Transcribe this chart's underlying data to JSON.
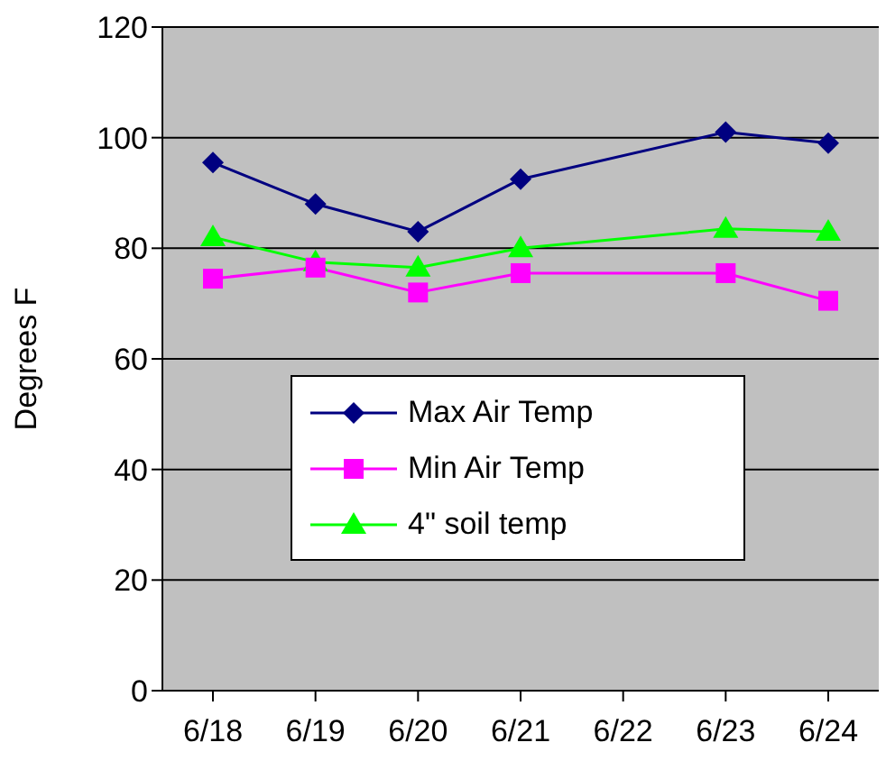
{
  "chart_data": {
    "type": "line",
    "ylabel": "Degrees F",
    "categories": [
      "6/18",
      "6/19",
      "6/20",
      "6/21",
      "6/22",
      "6/23",
      "6/24"
    ],
    "series": [
      {
        "name": "Max Air Temp",
        "color": "#000080",
        "marker": "diamond",
        "values": [
          95.5,
          88,
          83,
          92.5,
          null,
          101,
          99
        ]
      },
      {
        "name": "Min Air Temp",
        "color": "#ff00ff",
        "marker": "square",
        "values": [
          74.5,
          76.5,
          72,
          75.5,
          null,
          75.5,
          70.5
        ]
      },
      {
        "name": "4\" soil temp",
        "color": "#00ff00",
        "marker": "triangle",
        "values": [
          82,
          77.5,
          76.5,
          80,
          null,
          83.5,
          83
        ]
      }
    ],
    "ylim": [
      0,
      120
    ],
    "yticks": [
      0,
      20,
      40,
      60,
      80,
      100,
      120
    ],
    "grid": "y",
    "legend": "bottom"
  }
}
